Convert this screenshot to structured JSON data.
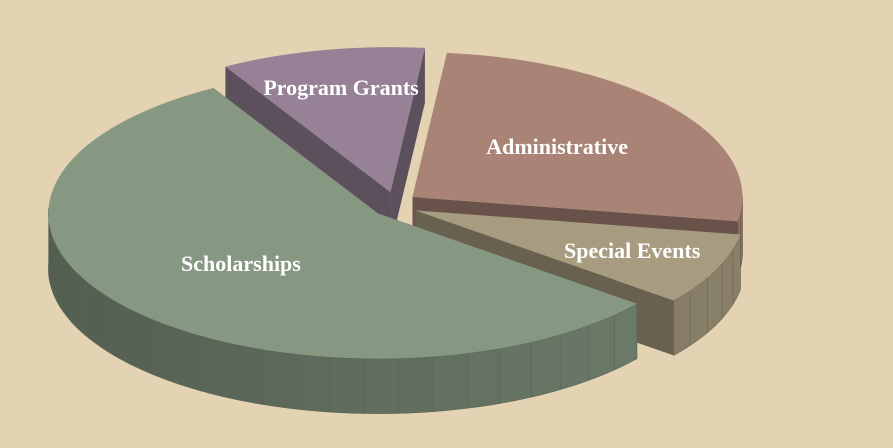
{
  "chart_data": {
    "type": "pie3d",
    "categories": [
      "Program Grants",
      "Administrative",
      "Special Events",
      "Scholarships"
    ],
    "values": [
      10,
      26,
      8,
      56
    ],
    "colors": [
      "#968196",
      "#a98476",
      "#a89c80",
      "#869882"
    ]
  }
}
